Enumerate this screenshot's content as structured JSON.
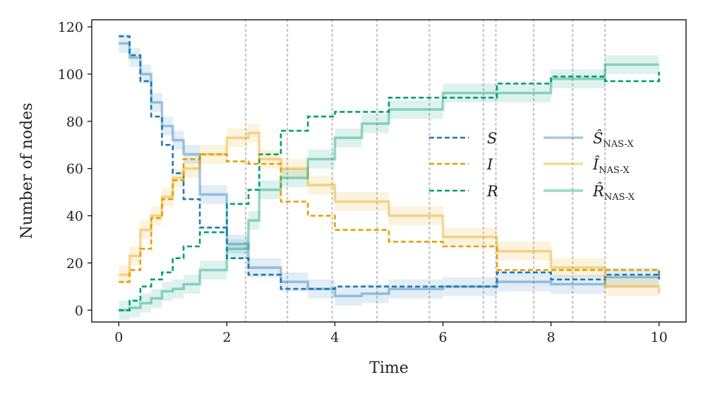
{
  "chart_data": {
    "type": "line",
    "title": "",
    "xlabel": "Time",
    "ylabel": "Number of nodes",
    "xlim": [
      -0.5,
      10.5
    ],
    "ylim": [
      -5,
      123
    ],
    "xticks": [
      0,
      2,
      4,
      6,
      8,
      10
    ],
    "yticks": [
      0,
      20,
      40,
      60,
      80,
      100,
      120
    ],
    "vlines": [
      2.35,
      3.12,
      3.95,
      4.78,
      5.75,
      6.75,
      6.98,
      7.68,
      8.4,
      9.0
    ],
    "legend_position": "center-right",
    "series": [
      {
        "name": "S",
        "style": "dashed",
        "color": "#1f77b4",
        "x": [
          0,
          0.2,
          0.4,
          0.6,
          0.8,
          1.0,
          1.2,
          1.5,
          2.0,
          2.4,
          3.0,
          3.5,
          4.0,
          5.0,
          6.0,
          7.0,
          8.0,
          9.0,
          10.0
        ],
        "y": [
          116,
          108,
          97,
          82,
          70,
          58,
          47,
          35,
          22,
          15,
          9,
          9,
          10,
          10,
          10,
          16,
          13,
          15,
          13
        ]
      },
      {
        "name": "I",
        "style": "dashed",
        "color": "#e69f00",
        "x": [
          0,
          0.2,
          0.4,
          0.6,
          0.8,
          1.0,
          1.2,
          1.5,
          2.0,
          2.4,
          3.0,
          3.5,
          4.0,
          5.0,
          6.0,
          7.0,
          8.0,
          9.0,
          10.0
        ],
        "y": [
          12,
          17,
          26,
          39,
          47,
          55,
          64,
          66,
          63,
          62,
          46,
          40,
          34,
          29,
          27,
          17,
          17,
          17,
          14
        ]
      },
      {
        "name": "R",
        "style": "dashed",
        "color": "#009e73",
        "x": [
          0,
          0.2,
          0.4,
          0.6,
          0.8,
          1.0,
          1.2,
          1.5,
          2.0,
          2.4,
          2.6,
          3.0,
          3.5,
          4.0,
          5.0,
          5.5,
          6.0,
          7.0,
          8.0,
          9.0,
          10.0
        ],
        "y": [
          0,
          4,
          10,
          13,
          16,
          22,
          27,
          33,
          45,
          51,
          66,
          76,
          82,
          84,
          90,
          90,
          90,
          96,
          99,
          97,
          101
        ]
      },
      {
        "name": "Ŝ NAS-X",
        "style": "solid",
        "color": "#1f77b4",
        "band": 4,
        "x": [
          0,
          0.2,
          0.4,
          0.6,
          0.8,
          1.0,
          1.2,
          1.5,
          2.0,
          2.4,
          3.0,
          3.5,
          4.0,
          4.5,
          5.0,
          6.0,
          7.0,
          8.0,
          9.0,
          10.0
        ],
        "y": [
          113,
          107,
          100,
          88,
          78,
          72,
          66,
          49,
          28,
          18,
          12,
          9,
          6,
          7,
          9,
          10,
          12,
          11,
          14,
          17
        ]
      },
      {
        "name": "Î NAS-X",
        "style": "solid",
        "color": "#e69f00",
        "band": 4,
        "x": [
          0,
          0.2,
          0.4,
          0.6,
          0.8,
          1.0,
          1.2,
          1.5,
          2.0,
          2.4,
          2.6,
          3.0,
          3.5,
          4.0,
          5.0,
          6.0,
          7.0,
          8.0,
          9.0,
          10.0
        ],
        "y": [
          15,
          23,
          34,
          40,
          48,
          56,
          60,
          66,
          73,
          75,
          64,
          60,
          53,
          46,
          40,
          31,
          25,
          18,
          10,
          7
        ]
      },
      {
        "name": "R̂ NAS-X",
        "style": "solid",
        "color": "#009e73",
        "band": 4,
        "x": [
          0,
          0.2,
          0.4,
          0.6,
          0.8,
          1.0,
          1.2,
          1.5,
          2.0,
          2.4,
          2.6,
          3.0,
          3.5,
          4.0,
          4.5,
          5.0,
          6.0,
          7.0,
          8.0,
          9.0,
          10.0
        ],
        "y": [
          0,
          1,
          3,
          5,
          8,
          9,
          11,
          17,
          26,
          38,
          51,
          56,
          64,
          73,
          79,
          85,
          92,
          92,
          98,
          104,
          104
        ]
      }
    ],
    "legend": [
      {
        "label": "S",
        "sub": ""
      },
      {
        "label": "I",
        "sub": ""
      },
      {
        "label": "R",
        "sub": ""
      },
      {
        "label": "Ŝ",
        "sub": "NAS-X"
      },
      {
        "label": "Î",
        "sub": "NAS-X"
      },
      {
        "label": "R̂",
        "sub": "NAS-X"
      }
    ]
  }
}
